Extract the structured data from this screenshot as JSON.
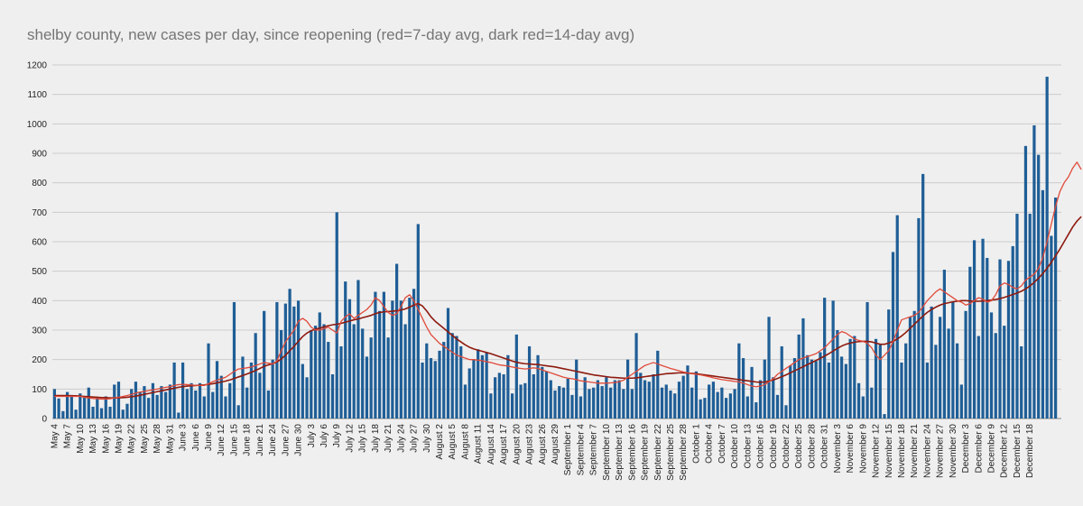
{
  "chart_data": {
    "type": "bar",
    "title": "shelby county, new cases per day, since reopening (red=7-day avg, dark red=14-day avg)",
    "xlabel": "",
    "ylabel": "",
    "ylim": [
      0,
      1200
    ],
    "yticks": [
      0,
      100,
      200,
      300,
      400,
      500,
      600,
      700,
      800,
      900,
      1000,
      1100,
      1200
    ],
    "grid": true,
    "legend": "none",
    "date_start": "May 4",
    "tick_labels": [
      "May 4",
      "May 7",
      "May 10",
      "May 13",
      "May 16",
      "May 19",
      "May 22",
      "May 25",
      "May 28",
      "May 31",
      "June 3",
      "June 6",
      "June 9",
      "June 12",
      "June 15",
      "June 18",
      "June 21",
      "June 24",
      "June 27",
      "June 30",
      "July 3",
      "July 6",
      "July 9",
      "July 12",
      "July 15",
      "July 18",
      "July 21",
      "July 24",
      "July 27",
      "July 30",
      "August 2",
      "August 5",
      "August 8",
      "August 11",
      "August 14",
      "August 17",
      "August 20",
      "August 23",
      "August 26",
      "August 29",
      "September 1",
      "September 4",
      "September 7",
      "September 10",
      "September 13",
      "September 16",
      "September 19",
      "September 22",
      "September 25",
      "September 28",
      "October 1",
      "October 4",
      "October 7",
      "October 10",
      "October 13",
      "October 16",
      "October 19",
      "October 22",
      "October 25",
      "October 28",
      "October 31",
      "November 3",
      "November 6",
      "November 9",
      "November 12",
      "November 15",
      "November 18",
      "November 21",
      "November 24",
      "November 27",
      "November 30",
      "December 3",
      "December 6",
      "December 9",
      "December 12",
      "December 15",
      "December 18"
    ],
    "colors": {
      "bars": "#1f5e96",
      "avg7": "#e04a3a",
      "avg14": "#8e1a0f",
      "grid": "#cccccc"
    },
    "series": [
      {
        "name": "new cases per day",
        "type": "bar",
        "values": [
          100,
          68,
          25,
          90,
          80,
          30,
          85,
          75,
          105,
          40,
          70,
          35,
          75,
          40,
          115,
          125,
          30,
          50,
          100,
          125,
          90,
          110,
          70,
          120,
          80,
          110,
          90,
          115,
          190,
          20,
          190,
          100,
          120,
          95,
          120,
          75,
          255,
          90,
          195,
          145,
          75,
          120,
          395,
          45,
          210,
          105,
          190,
          290,
          155,
          365,
          95,
          200,
          395,
          300,
          390,
          440,
          380,
          400,
          185,
          140,
          300,
          315,
          360,
          320,
          260,
          150,
          700,
          245,
          465,
          405,
          320,
          470,
          305,
          210,
          275,
          430,
          365,
          430,
          275,
          400,
          525,
          400,
          320,
          410,
          440,
          660,
          190,
          255,
          205,
          195,
          230,
          260,
          375,
          290,
          280,
          245,
          115,
          170,
          200,
          235,
          215,
          225,
          85,
          140,
          155,
          150,
          215,
          85,
          285,
          115,
          120,
          245,
          150,
          215,
          175,
          160,
          130,
          95,
          110,
          105,
          135,
          80,
          200,
          75,
          140,
          100,
          105,
          130,
          110,
          140,
          105,
          130,
          130,
          100,
          200,
          100,
          290,
          155,
          130,
          125,
          150,
          230,
          105,
          115,
          95,
          85,
          125,
          145,
          180,
          105,
          160,
          65,
          70,
          115,
          125,
          90,
          105,
          70,
          85,
          100,
          255,
          205,
          75,
          175,
          55,
          130,
          200,
          345,
          140,
          80,
          245,
          45,
          180,
          205,
          285,
          340,
          215,
          200,
          195,
          225,
          410,
          190,
          400,
          300,
          210,
          185,
          270,
          280,
          120,
          75,
          395,
          105,
          270,
          250,
          15,
          370,
          565,
          690,
          190,
          255,
          345,
          365,
          680,
          830,
          190,
          380,
          250,
          345,
          505,
          305,
          395,
          255,
          115,
          365,
          515,
          605,
          280,
          610,
          545,
          360,
          290,
          540,
          315,
          535,
          585,
          695,
          245,
          925,
          695,
          995,
          895,
          775,
          1160,
          620,
          750
        ]
      },
      {
        "name": "7-day avg",
        "type": "line",
        "values": [
          75,
          75,
          75,
          75,
          75,
          75,
          75,
          72,
          70,
          68,
          67,
          66,
          66,
          67,
          70,
          72,
          75,
          78,
          82,
          86,
          90,
          92,
          95,
          97,
          100,
          103,
          106,
          108,
          112,
          115,
          116,
          115,
          114,
          112,
          112,
          112,
          118,
          125,
          130,
          135,
          140,
          150,
          160,
          168,
          170,
          172,
          175,
          180,
          185,
          190,
          188,
          185,
          195,
          230,
          260,
          280,
          300,
          330,
          340,
          330,
          310,
          300,
          300,
          305,
          310,
          300,
          290,
          330,
          345,
          355,
          340,
          350,
          360,
          370,
          385,
          410,
          400,
          380,
          360,
          350,
          355,
          380,
          410,
          420,
          400,
          370,
          340,
          310,
          285,
          270,
          255,
          245,
          235,
          225,
          215,
          210,
          205,
          200,
          200,
          198,
          196,
          193,
          190,
          186,
          182,
          180,
          178,
          175,
          172,
          170,
          168,
          170,
          172,
          170,
          165,
          160,
          155,
          150,
          145,
          140,
          137,
          135,
          132,
          128,
          126,
          124,
          122,
          120,
          120,
          120,
          121,
          122,
          125,
          130,
          140,
          150,
          160,
          170,
          180,
          185,
          190,
          185,
          180,
          175,
          170,
          166,
          162,
          158,
          155,
          152,
          150,
          148,
          145,
          142,
          138,
          135,
          132,
          130,
          128,
          126,
          124,
          120,
          115,
          110,
          108,
          110,
          115,
          125,
          135,
          150,
          160,
          170,
          180,
          190,
          200,
          205,
          210,
          215,
          220,
          230,
          240,
          255,
          270,
          285,
          295,
          290,
          280,
          270,
          265,
          262,
          255,
          240,
          215,
          200,
          215,
          230,
          260,
          300,
          335,
          340,
          345,
          350,
          360,
          380,
          400,
          415,
          430,
          440,
          430,
          420,
          410,
          400,
          395,
          385,
          390,
          400,
          410,
          405,
          395,
          400,
          420,
          450,
          460,
          455,
          445,
          440,
          450,
          470,
          480,
          490,
          510,
          545,
          600,
          660,
          720,
          770,
          800,
          820,
          850,
          870,
          845
        ]
      },
      {
        "name": "14-day avg",
        "type": "line",
        "values": [
          78,
          78,
          78,
          78,
          77,
          77,
          76,
          75,
          74,
          73,
          72,
          71,
          71,
          70,
          70,
          70,
          71,
          72,
          74,
          76,
          79,
          82,
          85,
          88,
          91,
          94,
          97,
          100,
          103,
          106,
          108,
          110,
          111,
          112,
          113,
          114,
          116,
          118,
          121,
          124,
          127,
          131,
          136,
          141,
          146,
          151,
          157,
          163,
          170,
          177,
          182,
          186,
          192,
          202,
          215,
          230,
          245,
          262,
          278,
          290,
          298,
          303,
          307,
          311,
          315,
          318,
          320,
          323,
          327,
          331,
          335,
          338,
          342,
          346,
          350,
          356,
          360,
          362,
          363,
          364,
          366,
          368,
          372,
          378,
          385,
          390,
          382,
          365,
          345,
          330,
          318,
          306,
          294,
          282,
          270,
          260,
          250,
          242,
          236,
          232,
          228,
          224,
          220,
          215,
          210,
          205,
          200,
          195,
          191,
          188,
          186,
          185,
          184,
          183,
          181,
          179,
          177,
          175,
          172,
          169,
          166,
          163,
          160,
          157,
          154,
          151,
          148,
          146,
          144,
          142,
          140,
          139,
          138,
          137,
          137,
          137,
          138,
          140,
          142,
          144,
          146,
          148,
          150,
          152,
          153,
          154,
          155,
          155,
          154,
          153,
          152,
          150,
          148,
          146,
          144,
          142,
          140,
          138,
          136,
          134,
          132,
          130,
          128,
          126,
          124,
          123,
          124,
          127,
          131,
          136,
          142,
          148,
          155,
          162,
          169,
          176,
          183,
          190,
          197,
          204,
          212,
          220,
          229,
          238,
          246,
          252,
          256,
          259,
          261,
          262,
          262,
          260,
          256,
          252,
          252,
          256,
          262,
          270,
          280,
          292,
          306,
          320,
          334,
          348,
          360,
          370,
          378,
          385,
          390,
          393,
          396,
          398,
          400,
          400,
          399,
          398,
          398,
          399,
          400,
          402,
          404,
          407,
          411,
          416,
          421,
          426,
          432,
          440,
          450,
          462,
          476,
          492,
          510,
          530,
          552,
          575,
          600,
          625,
          650,
          670,
          685
        ]
      }
    ]
  }
}
